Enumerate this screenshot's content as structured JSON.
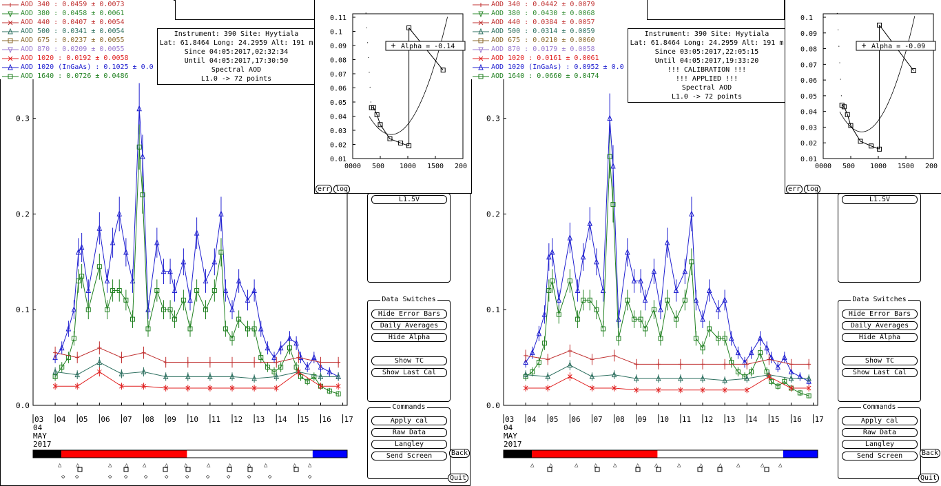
{
  "chart_data": [
    {
      "type": "line",
      "panel": "left",
      "info": [
        "Instrument: 390 Site: Hyytiala",
        "Lat: 61.8464 Long: 24.2959 Alt: 191 m",
        "Since 04:05:2017,02:32:34",
        "Until 04:05:2017,17:30:50",
        "Spectral AOD",
        "L1.0 -> 72 points"
      ],
      "legend": [
        {
          "name": "AOD 340",
          "value": ": 0.0459 ± 0.0073",
          "color": "#c03030",
          "marker": "plus-line"
        },
        {
          "name": "AOD 380",
          "value": ": 0.0458 ± 0.0061",
          "color": "#2e8b2e",
          "marker": "tri-down"
        },
        {
          "name": "AOD 440",
          "value": ": 0.0407 ± 0.0054",
          "color": "#c03030",
          "marker": "x"
        },
        {
          "name": "AOD 500",
          "value": ": 0.0341 ± 0.0054",
          "color": "#2e7060",
          "marker": "tri-up"
        },
        {
          "name": "AOD 675",
          "value": ": 0.0237 ± 0.0055",
          "color": "#8b6a2e",
          "marker": "square"
        },
        {
          "name": "AOD 870",
          "value": ": 0.0209 ± 0.0055",
          "color": "#9a7ad0",
          "marker": "tri-down"
        },
        {
          "name": "AOD 1020",
          "value": " : 0.0192 ± 0.0058",
          "color": "#e02020",
          "marker": "x"
        },
        {
          "name": "AOD 1020 (InGaAs)",
          "value": " : 0.1025 ± 0.0",
          "color": "#2020d0",
          "marker": "tri-up"
        },
        {
          "name": "AOD 1640",
          "value": " : 0.0726 ± 0.0486",
          "color": "#208020",
          "marker": "square"
        }
      ],
      "y_ticks": [
        "0.0",
        "0.1",
        "0.2",
        "0.3"
      ],
      "ylim": [
        0,
        0.33
      ],
      "x_ticks": [
        "03",
        "04",
        "05",
        "06",
        "07",
        "08",
        "09",
        "10",
        "11",
        "12",
        "13",
        "14",
        "15",
        "16",
        "17"
      ],
      "x_sub": [
        "04",
        "MAY",
        "2017"
      ],
      "series": [
        {
          "name": "AOD 1020 (InGaAs)",
          "x": [
            4.0,
            4.3,
            4.6,
            4.85,
            5.05,
            5.2,
            5.5,
            6.0,
            6.35,
            6.6,
            6.9,
            7.2,
            7.5,
            7.8,
            7.95,
            8.2,
            8.6,
            8.9,
            9.2,
            9.4,
            9.8,
            10.1,
            10.4,
            10.8,
            11.2,
            11.5,
            11.7,
            12.0,
            12.3,
            12.7,
            13.0,
            13.3,
            13.6,
            13.9,
            14.2,
            14.6,
            14.9,
            15.1,
            15.4,
            15.7,
            16.0,
            16.4,
            16.8
          ],
          "values": [
            0.05,
            0.06,
            0.08,
            0.1,
            0.16,
            0.165,
            0.12,
            0.185,
            0.13,
            0.17,
            0.2,
            0.16,
            0.13,
            0.31,
            0.26,
            0.1,
            0.17,
            0.14,
            0.14,
            0.12,
            0.15,
            0.11,
            0.18,
            0.13,
            0.15,
            0.2,
            0.12,
            0.1,
            0.13,
            0.11,
            0.12,
            0.08,
            0.06,
            0.05,
            0.06,
            0.07,
            0.065,
            0.05,
            0.04,
            0.05,
            0.04,
            0.035,
            0.03
          ]
        },
        {
          "name": "AOD 1640",
          "x": [
            4.0,
            4.3,
            4.6,
            4.85,
            5.05,
            5.2,
            5.5,
            6.0,
            6.35,
            6.6,
            6.9,
            7.2,
            7.5,
            7.8,
            7.95,
            8.2,
            8.6,
            8.9,
            9.2,
            9.4,
            9.8,
            10.1,
            10.4,
            10.8,
            11.2,
            11.5,
            11.7,
            12.0,
            12.3,
            12.7,
            13.0,
            13.3,
            13.6,
            13.9,
            14.2,
            14.6,
            14.9,
            15.1,
            15.4,
            15.7,
            16.0,
            16.4,
            16.8
          ],
          "values": [
            0.03,
            0.04,
            0.05,
            0.07,
            0.13,
            0.135,
            0.1,
            0.145,
            0.1,
            0.12,
            0.12,
            0.11,
            0.09,
            0.27,
            0.22,
            0.08,
            0.12,
            0.1,
            0.1,
            0.09,
            0.11,
            0.08,
            0.12,
            0.1,
            0.12,
            0.16,
            0.08,
            0.07,
            0.09,
            0.08,
            0.08,
            0.05,
            0.04,
            0.035,
            0.04,
            0.06,
            0.04,
            0.03,
            0.025,
            0.03,
            0.02,
            0.015,
            0.012
          ]
        },
        {
          "name": "AOD 340",
          "x": [
            4.0,
            5.0,
            6.0,
            7.0,
            8.0,
            9.0,
            10.0,
            11.0,
            12.0,
            13.0,
            14.0,
            15.0,
            16.0,
            16.8
          ],
          "values": [
            0.055,
            0.05,
            0.06,
            0.05,
            0.055,
            0.045,
            0.045,
            0.045,
            0.045,
            0.045,
            0.045,
            0.05,
            0.045,
            0.045
          ]
        },
        {
          "name": "AOD 500",
          "x": [
            4.0,
            5.0,
            6.0,
            7.0,
            8.0,
            9.0,
            10.0,
            11.0,
            12.0,
            13.0,
            14.0,
            15.0,
            16.0,
            16.8
          ],
          "values": [
            0.035,
            0.032,
            0.045,
            0.033,
            0.035,
            0.03,
            0.03,
            0.03,
            0.03,
            0.028,
            0.03,
            0.035,
            0.03,
            0.03
          ]
        },
        {
          "name": "AOD 1020",
          "x": [
            4.0,
            5.0,
            6.0,
            7.0,
            8.0,
            9.0,
            10.0,
            11.0,
            12.0,
            13.0,
            14.0,
            15.0,
            16.0,
            16.8
          ],
          "values": [
            0.02,
            0.02,
            0.035,
            0.02,
            0.02,
            0.018,
            0.018,
            0.018,
            0.018,
            0.018,
            0.018,
            0.035,
            0.02,
            0.02
          ]
        }
      ],
      "inset": {
        "x_ticks": [
          "0000",
          "500",
          "1000",
          "1500",
          "200"
        ],
        "y_ticks": [
          "0.01",
          "0.02",
          "0.03",
          "0.04",
          "0.05",
          "0.06",
          "0.07",
          "0.08",
          "0.09",
          "0.1",
          "0.11"
        ],
        "label": "Alpha = -0.14",
        "points": [
          [
            340,
            0.046
          ],
          [
            380,
            0.046
          ],
          [
            440,
            0.041
          ],
          [
            500,
            0.034
          ],
          [
            675,
            0.024
          ],
          [
            870,
            0.021
          ],
          [
            1020,
            0.019
          ],
          [
            1020,
            0.1025
          ],
          [
            1640,
            0.0726
          ]
        ]
      },
      "buttons_top": [
        "err",
        "log"
      ],
      "timeline_segments": [
        {
          "color": "#000000",
          "frac": 0.09
        },
        {
          "color": "#ff0000",
          "frac": 0.4
        },
        {
          "color": "#ffffff",
          "frac": 0.4
        },
        {
          "color": "#0000ff",
          "frac": 0.11
        }
      ]
    },
    {
      "type": "line",
      "panel": "right",
      "info": [
        "Instrument: 390 Site: Hyytiala",
        "Lat: 61.8464 Long: 24.2959 Alt: 191 m",
        "Since 03:05:2017,22:05:15",
        "Until 04:05:2017,19:33:20",
        "!!! CALIBRATION !!!",
        "!!!   APPLIED   !!!",
        "Spectral AOD",
        "L1.0 -> 72 points"
      ],
      "legend": [
        {
          "name": "AOD 340",
          "value": ": 0.0442 ± 0.0079",
          "color": "#c03030",
          "marker": "plus-line"
        },
        {
          "name": "AOD 380",
          "value": ": 0.0430 ± 0.0068",
          "color": "#2e8b2e",
          "marker": "tri-down"
        },
        {
          "name": "AOD 440",
          "value": ": 0.0384 ± 0.0057",
          "color": "#c03030",
          "marker": "x"
        },
        {
          "name": "AOD 500",
          "value": ": 0.0314 ± 0.0059",
          "color": "#2e7060",
          "marker": "tri-up"
        },
        {
          "name": "AOD 675",
          "value": ": 0.0210 ± 0.0060",
          "color": "#8b6a2e",
          "marker": "square"
        },
        {
          "name": "AOD 870",
          "value": ": 0.0179 ± 0.0058",
          "color": "#9a7ad0",
          "marker": "tri-down"
        },
        {
          "name": "AOD 1020",
          "value": " : 0.0161 ± 0.0061",
          "color": "#e02020",
          "marker": "x"
        },
        {
          "name": "AOD 1020 (InGaAs)",
          "value": " : 0.0952 ± 0.0",
          "color": "#2020d0",
          "marker": "tri-up"
        },
        {
          "name": "AOD 1640",
          "value": " : 0.0660 ± 0.0474",
          "color": "#208020",
          "marker": "square"
        }
      ],
      "y_ticks": [
        "0.0",
        "0.1",
        "0.2",
        "0.3"
      ],
      "ylim": [
        0,
        0.33
      ],
      "x_ticks": [
        "03",
        "04",
        "05",
        "06",
        "07",
        "08",
        "09",
        "10",
        "11",
        "12",
        "13",
        "14",
        "15",
        "16",
        "17"
      ],
      "x_sub": [
        "04",
        "MAY",
        "2017"
      ],
      "series": [
        {
          "name": "AOD 1020 (InGaAs)",
          "x": [
            4.0,
            4.3,
            4.6,
            4.85,
            5.05,
            5.2,
            5.5,
            6.0,
            6.35,
            6.6,
            6.9,
            7.2,
            7.5,
            7.8,
            7.95,
            8.2,
            8.6,
            8.9,
            9.2,
            9.4,
            9.8,
            10.1,
            10.4,
            10.8,
            11.2,
            11.5,
            11.7,
            12.0,
            12.3,
            12.7,
            13.0,
            13.3,
            13.6,
            13.9,
            14.2,
            14.6,
            14.9,
            15.1,
            15.4,
            15.7,
            16.0,
            16.4,
            16.8
          ],
          "values": [
            0.045,
            0.055,
            0.075,
            0.095,
            0.155,
            0.16,
            0.11,
            0.175,
            0.12,
            0.155,
            0.19,
            0.15,
            0.12,
            0.3,
            0.25,
            0.09,
            0.16,
            0.13,
            0.13,
            0.11,
            0.14,
            0.1,
            0.17,
            0.12,
            0.14,
            0.2,
            0.11,
            0.09,
            0.12,
            0.1,
            0.11,
            0.07,
            0.055,
            0.045,
            0.055,
            0.07,
            0.06,
            0.05,
            0.04,
            0.05,
            0.035,
            0.03,
            0.025
          ]
        },
        {
          "name": "AOD 1640",
          "x": [
            4.0,
            4.3,
            4.6,
            4.85,
            5.05,
            5.2,
            5.5,
            6.0,
            6.35,
            6.6,
            6.9,
            7.2,
            7.5,
            7.8,
            7.95,
            8.2,
            8.6,
            8.9,
            9.2,
            9.4,
            9.8,
            10.1,
            10.4,
            10.8,
            11.2,
            11.5,
            11.7,
            12.0,
            12.3,
            12.7,
            13.0,
            13.3,
            13.6,
            13.9,
            14.2,
            14.6,
            14.9,
            15.1,
            15.4,
            15.7,
            16.0,
            16.4,
            16.8
          ],
          "values": [
            0.03,
            0.035,
            0.045,
            0.065,
            0.12,
            0.13,
            0.095,
            0.13,
            0.09,
            0.11,
            0.11,
            0.1,
            0.08,
            0.26,
            0.21,
            0.07,
            0.11,
            0.09,
            0.09,
            0.08,
            0.1,
            0.07,
            0.11,
            0.09,
            0.11,
            0.15,
            0.07,
            0.06,
            0.08,
            0.07,
            0.07,
            0.045,
            0.035,
            0.03,
            0.035,
            0.055,
            0.035,
            0.025,
            0.02,
            0.025,
            0.018,
            0.013,
            0.01
          ]
        },
        {
          "name": "AOD 340",
          "x": [
            4.0,
            5.0,
            6.0,
            7.0,
            8.0,
            9.0,
            10.0,
            11.0,
            12.0,
            13.0,
            14.0,
            15.0,
            16.0,
            16.8
          ],
          "values": [
            0.052,
            0.048,
            0.057,
            0.048,
            0.052,
            0.043,
            0.043,
            0.043,
            0.043,
            0.043,
            0.043,
            0.048,
            0.043,
            0.043
          ]
        },
        {
          "name": "AOD 500",
          "x": [
            4.0,
            5.0,
            6.0,
            7.0,
            8.0,
            9.0,
            10.0,
            11.0,
            12.0,
            13.0,
            14.0,
            15.0,
            16.0,
            16.8
          ],
          "values": [
            0.032,
            0.03,
            0.042,
            0.03,
            0.032,
            0.028,
            0.028,
            0.028,
            0.028,
            0.026,
            0.028,
            0.032,
            0.028,
            0.028
          ]
        },
        {
          "name": "AOD 1020",
          "x": [
            4.0,
            5.0,
            6.0,
            7.0,
            8.0,
            9.0,
            10.0,
            11.0,
            12.0,
            13.0,
            14.0,
            15.0,
            16.0,
            16.8
          ],
          "values": [
            0.018,
            0.018,
            0.03,
            0.018,
            0.018,
            0.016,
            0.016,
            0.016,
            0.016,
            0.016,
            0.016,
            0.03,
            0.018,
            0.018
          ]
        }
      ],
      "inset": {
        "x_ticks": [
          "0000",
          "500",
          "1000",
          "1500",
          "200"
        ],
        "y_ticks": [
          "0.01",
          "0.02",
          "0.03",
          "0.04",
          "0.05",
          "0.06",
          "0.07",
          "0.08",
          "0.09",
          "0.1"
        ],
        "label": "Alpha = -0.09",
        "points": [
          [
            340,
            0.044
          ],
          [
            380,
            0.043
          ],
          [
            440,
            0.038
          ],
          [
            500,
            0.031
          ],
          [
            675,
            0.021
          ],
          [
            870,
            0.018
          ],
          [
            1020,
            0.016
          ],
          [
            1020,
            0.095
          ],
          [
            1640,
            0.066
          ]
        ]
      },
      "buttons_top": [
        "err",
        "log"
      ],
      "timeline_segments": [
        {
          "color": "#000000",
          "frac": 0.09
        },
        {
          "color": "#ff0000",
          "frac": 0.4
        },
        {
          "color": "#ffffff",
          "frac": 0.4
        },
        {
          "color": "#0000ff",
          "frac": 0.11
        }
      ]
    }
  ],
  "sidebar": {
    "top_button": "L1.5V",
    "data_switches_title": "Data Switches",
    "data_switches": [
      "Hide Error Bars",
      "Daily Averages",
      "Hide Alpha",
      "Show TC",
      "Show Last Cal"
    ],
    "commands_title": "Commands",
    "commands": [
      "Apply cal",
      "Raw Data",
      "Langley",
      "Send Screen"
    ],
    "back": "Back",
    "quit": "Quit"
  }
}
